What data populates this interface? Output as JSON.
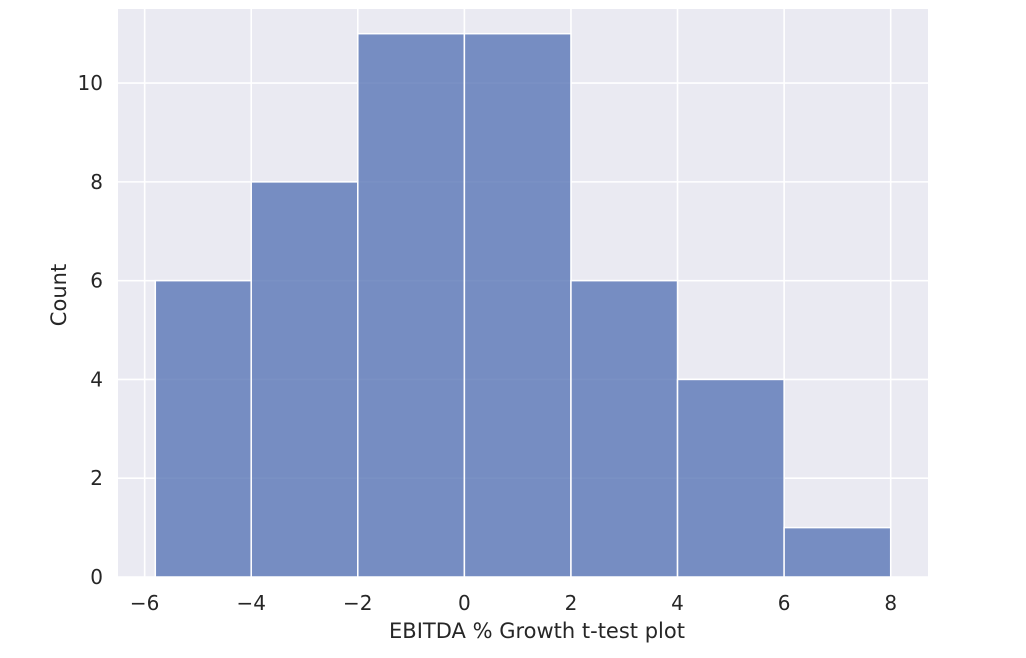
{
  "chart_data": {
    "type": "bar",
    "subtype": "histogram",
    "title": "",
    "xlabel": "EBITDA % Growth t-test plot",
    "ylabel": "Count",
    "xlim": [
      -6.5,
      8.7
    ],
    "ylim": [
      0,
      11.5
    ],
    "xticks": [
      -6,
      -4,
      -2,
      0,
      2,
      4,
      6,
      8
    ],
    "xtick_labels": [
      "−6",
      "−4",
      "−2",
      "0",
      "2",
      "4",
      "6",
      "8"
    ],
    "yticks": [
      0,
      2,
      4,
      6,
      8,
      10
    ],
    "ytick_labels": [
      "0",
      "2",
      "4",
      "6",
      "8",
      "10"
    ],
    "bins": [
      {
        "x0": -5.8,
        "x1": -4.0,
        "count": 6
      },
      {
        "x0": -4.0,
        "x1": -2.0,
        "count": 8
      },
      {
        "x0": -2.0,
        "x1": 0.0,
        "count": 11
      },
      {
        "x0": 0.0,
        "x1": 2.0,
        "count": 11
      },
      {
        "x0": 2.0,
        "x1": 4.0,
        "count": 6
      },
      {
        "x0": 4.0,
        "x1": 6.0,
        "count": 4
      },
      {
        "x0": 6.0,
        "x1": 8.0,
        "count": 1
      }
    ],
    "grid": true,
    "colors": {
      "bar_fill": "#5975b5",
      "bar_stroke": "#ffffff",
      "plot_background": "#eaeaf2",
      "grid": "#ffffff",
      "text": "#262626"
    }
  }
}
